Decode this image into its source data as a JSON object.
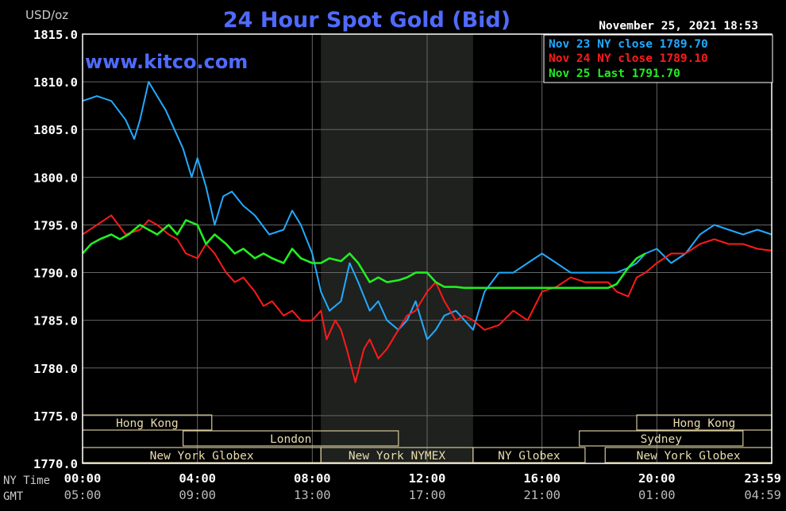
{
  "chart_data": {
    "type": "line",
    "title": "24 Hour Spot Gold (Bid)",
    "watermark": "www.kitco.com",
    "timestamp": "November 25, 2021 18:53",
    "ylabel": "USD/oz",
    "ylim": [
      1770,
      1815
    ],
    "xlim": [
      0,
      24
    ],
    "grid": true,
    "legend_position": "top-right",
    "y_ticks": [
      "1815.0",
      "1810.0",
      "1805.0",
      "1800.0",
      "1795.0",
      "1790.0",
      "1785.0",
      "1780.0",
      "1775.0",
      "1770.0"
    ],
    "x_row_labels": {
      "ny": "NY Time",
      "gmt": "GMT"
    },
    "x_ticks_ny": [
      "00:00",
      "04:00",
      "08:00",
      "12:00",
      "16:00",
      "20:00",
      "23:59"
    ],
    "x_ticks_gmt": [
      "05:00",
      "09:00",
      "13:00",
      "17:00",
      "21:00",
      "01:00",
      "04:59"
    ],
    "x_tick_hours": [
      0,
      4,
      8,
      12,
      16,
      20,
      24
    ],
    "highlight_band": {
      "start_hour": 8.3,
      "end_hour": 13.6
    },
    "sessions": [
      {
        "label": "Hong Kong",
        "start": 0,
        "end": 4.5,
        "row": 0
      },
      {
        "label": "Hong Kong",
        "start": 19.3,
        "end": 24,
        "row": 0
      },
      {
        "label": "London",
        "start": 3.5,
        "end": 11,
        "row": 1
      },
      {
        "label": "Sydney",
        "start": 17.3,
        "end": 23,
        "row": 1
      },
      {
        "label": "New York Globex",
        "start": 0,
        "end": 8.3,
        "row": 2
      },
      {
        "label": "New York NYMEX",
        "start": 8.3,
        "end": 13.6,
        "row": 2
      },
      {
        "label": "NY Globex",
        "start": 13.6,
        "end": 17.5,
        "row": 2
      },
      {
        "label": "New York Globex",
        "start": 18.2,
        "end": 24,
        "row": 2
      }
    ],
    "series": [
      {
        "name": "Nov 23 NY close 1789.70",
        "color": "#22aaff",
        "x": [
          0,
          0.5,
          1,
          1.5,
          1.8,
          2,
          2.3,
          2.6,
          2.9,
          3.2,
          3.5,
          3.8,
          4.0,
          4.3,
          4.6,
          4.9,
          5.2,
          5.6,
          6,
          6.5,
          7,
          7.3,
          7.6,
          8,
          8.3,
          8.6,
          9,
          9.3,
          9.6,
          10,
          10.3,
          10.6,
          11,
          11.3,
          11.6,
          12,
          12.3,
          12.6,
          13,
          13.3,
          13.6,
          14,
          14.5,
          15,
          15.5,
          16,
          16.5,
          17,
          17.5,
          18,
          18.3,
          18.6,
          19,
          19.3,
          19.6,
          20,
          20.5,
          21,
          21.5,
          22,
          22.5,
          23,
          23.5,
          24
        ],
        "y": [
          1808,
          1808.5,
          1808,
          1806,
          1804,
          1806,
          1810,
          1808.5,
          1807,
          1805,
          1803,
          1800,
          1802,
          1799,
          1795,
          1798,
          1798.5,
          1797,
          1796,
          1794,
          1794.5,
          1796.5,
          1795,
          1792,
          1788,
          1786,
          1787,
          1791,
          1789,
          1786,
          1787,
          1785,
          1784,
          1785,
          1787,
          1783,
          1784,
          1785.5,
          1786,
          1785,
          1784,
          1788,
          1790,
          1790,
          1791,
          1792,
          1791,
          1790,
          1790,
          1790,
          1790,
          1790,
          1790.5,
          1791,
          1792,
          1792.5,
          1791,
          1792,
          1794,
          1795,
          1794.5,
          1794,
          1794.5,
          1794
        ]
      },
      {
        "name": "Nov 24 NY close 1789.10",
        "color": "#ff1a1a",
        "x": [
          0,
          0.5,
          1,
          1.5,
          2,
          2.3,
          2.6,
          3,
          3.3,
          3.6,
          4,
          4.3,
          4.6,
          5,
          5.3,
          5.6,
          6,
          6.3,
          6.6,
          7,
          7.3,
          7.6,
          8,
          8.3,
          8.5,
          8.8,
          9,
          9.2,
          9.5,
          9.8,
          10,
          10.3,
          10.6,
          11,
          11.3,
          11.6,
          12,
          12.3,
          12.6,
          13,
          13.3,
          13.6,
          14,
          14.5,
          15,
          15.5,
          16,
          16.5,
          17,
          17.5,
          18,
          18.3,
          18.6,
          19,
          19.3,
          19.6,
          20,
          20.5,
          21,
          21.5,
          22,
          22.5,
          23,
          23.5,
          24
        ],
        "y": [
          1794,
          1795,
          1796,
          1794,
          1794.5,
          1795.5,
          1795,
          1794,
          1793.5,
          1792,
          1791.5,
          1793,
          1792,
          1790,
          1789,
          1789.5,
          1788,
          1786.5,
          1787,
          1785.5,
          1786,
          1785,
          1785,
          1786,
          1783,
          1785,
          1784,
          1782,
          1778.5,
          1782,
          1783,
          1781,
          1782,
          1784,
          1785.5,
          1786,
          1788,
          1789,
          1787,
          1785,
          1785.5,
          1785,
          1784,
          1784.5,
          1786,
          1785,
          1788,
          1788.5,
          1789.5,
          1789,
          1789,
          1789,
          1788,
          1787.5,
          1789.5,
          1790,
          1791,
          1792,
          1792,
          1793,
          1793.5,
          1793,
          1793,
          1792.5,
          1792.3
        ]
      },
      {
        "name": "Nov 25 Last 1791.70",
        "color": "#22ee22",
        "x": [
          0,
          0.3,
          0.6,
          1,
          1.3,
          1.6,
          2,
          2.3,
          2.6,
          3,
          3.3,
          3.6,
          4,
          4.3,
          4.6,
          5,
          5.3,
          5.6,
          6,
          6.3,
          6.6,
          7,
          7.3,
          7.6,
          8,
          8.3,
          8.6,
          9,
          9.3,
          9.6,
          10,
          10.3,
          10.6,
          11,
          11.3,
          11.6,
          12,
          12.3,
          12.6,
          13,
          13.3,
          13.6,
          14,
          14.5,
          15,
          15.5,
          16,
          16.5,
          17,
          17.5,
          18,
          18.3,
          18.6,
          19,
          19.3,
          19.6
        ],
        "y": [
          1792,
          1793,
          1793.5,
          1794,
          1793.5,
          1794,
          1795,
          1794.5,
          1794,
          1795,
          1794,
          1795.5,
          1795,
          1793,
          1794,
          1793,
          1792,
          1792.5,
          1791.5,
          1792,
          1791.5,
          1791,
          1792.5,
          1791.5,
          1791,
          1791,
          1791.5,
          1791.2,
          1792,
          1791,
          1789,
          1789.5,
          1789,
          1789.2,
          1789.5,
          1790,
          1790,
          1789,
          1788.5,
          1788.5,
          1788.4,
          1788.4,
          1788.4,
          1788.4,
          1788.4,
          1788.4,
          1788.4,
          1788.4,
          1788.4,
          1788.4,
          1788.4,
          1788.4,
          1788.8,
          1790.5,
          1791.5,
          1792
        ]
      }
    ]
  }
}
